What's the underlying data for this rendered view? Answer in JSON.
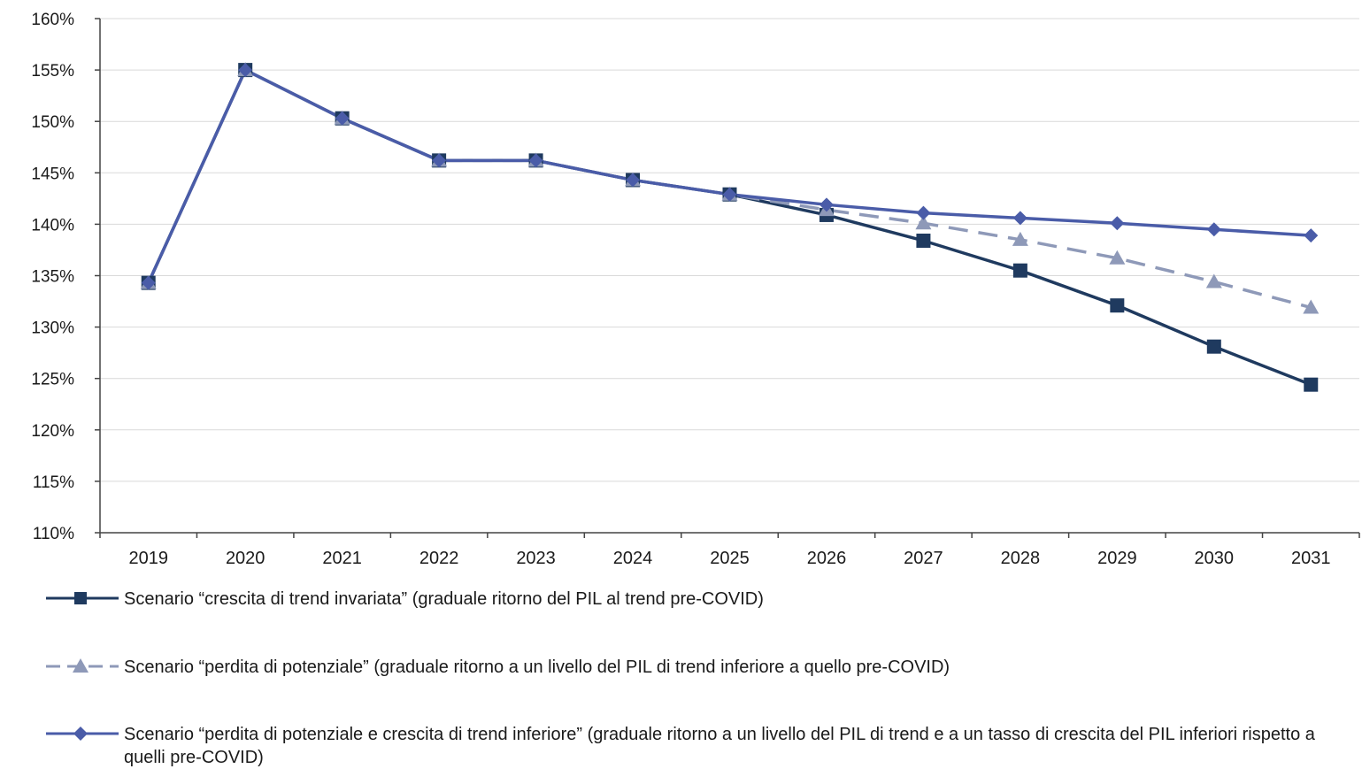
{
  "chart_data": {
    "type": "line",
    "title": "",
    "xlabel": "",
    "ylabel": "",
    "ylim": [
      110,
      160
    ],
    "ytick_step": 5,
    "y_tick_suffix": "%",
    "grid": true,
    "legend_position": "bottom",
    "x": [
      "2019",
      "2020",
      "2021",
      "2022",
      "2023",
      "2024",
      "2025",
      "2026",
      "2027",
      "2028",
      "2029",
      "2030",
      "2031"
    ],
    "series": [
      {
        "name": "Scenario “crescita di trend invariata” (graduale ritorno del PIL al trend pre-COVID)",
        "values": [
          134.3,
          155.0,
          150.3,
          146.2,
          146.2,
          144.3,
          142.9,
          140.9,
          138.4,
          135.5,
          132.1,
          128.1,
          124.4
        ],
        "color": "#1f3a5f",
        "marker": "square",
        "dash": false
      },
      {
        "name": "Scenario “perdita di potenziale” (graduale ritorno a un livello del PIL di trend  inferiore a quello pre-COVID)",
        "values": [
          134.3,
          155.0,
          150.3,
          146.2,
          146.2,
          144.3,
          142.9,
          141.4,
          140.1,
          138.5,
          136.7,
          134.4,
          131.9
        ],
        "color": "#8e99b8",
        "marker": "triangle",
        "dash": true
      },
      {
        "name": "Scenario “perdita di potenziale e  crescita di trend inferiore” (graduale ritorno a un livello del PIL di trend  e a un tasso di crescita del PIL inferiori rispetto a quelli pre-COVID)",
        "values": [
          134.3,
          155.0,
          150.3,
          146.2,
          146.2,
          144.3,
          142.9,
          141.9,
          141.1,
          140.6,
          140.1,
          139.5,
          138.9
        ],
        "color": "#4a5ca8",
        "marker": "diamond",
        "dash": false
      }
    ]
  }
}
